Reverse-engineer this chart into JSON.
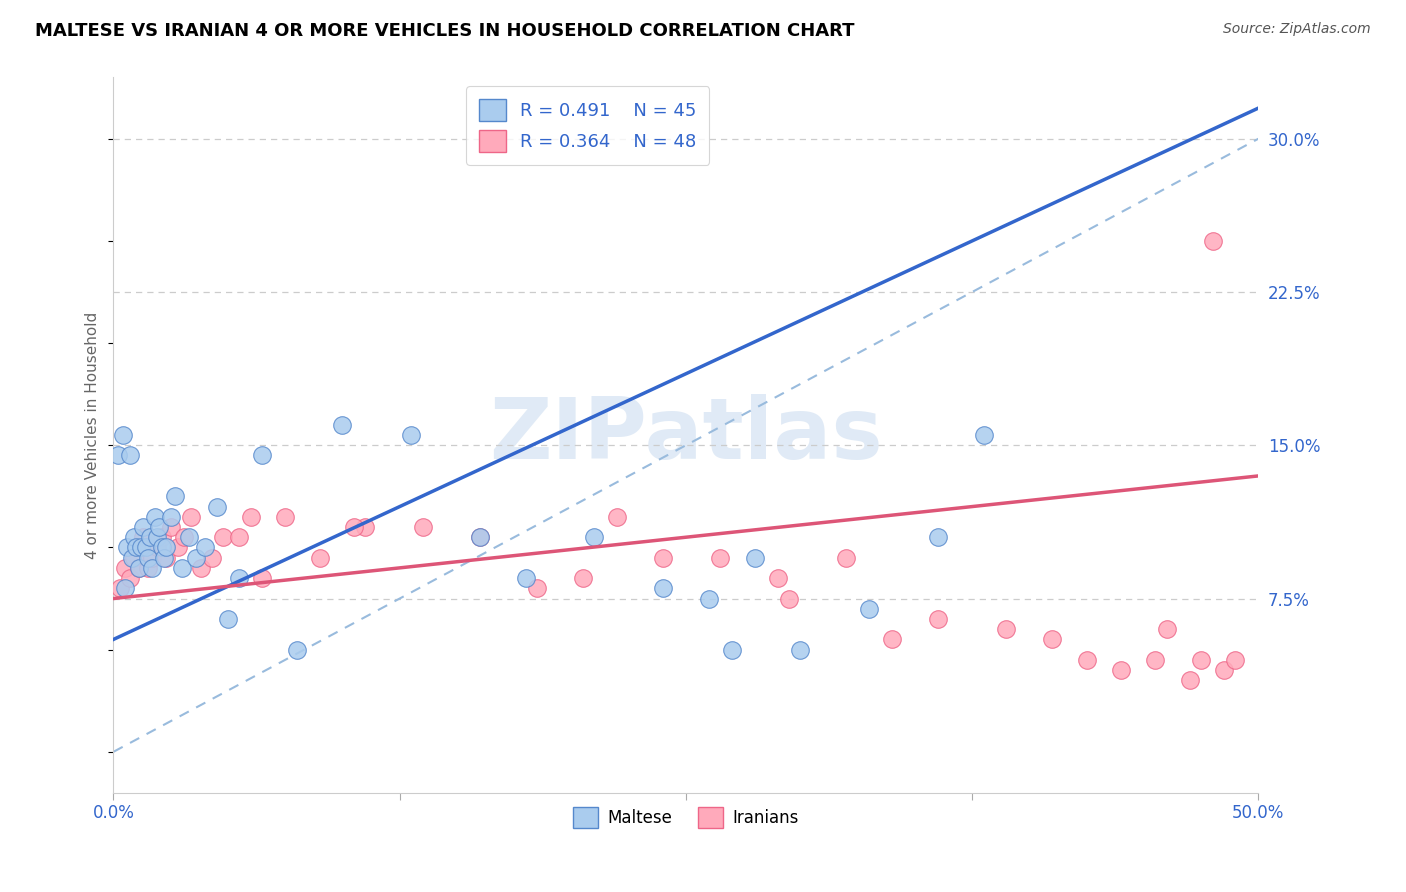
{
  "title": "MALTESE VS IRANIAN 4 OR MORE VEHICLES IN HOUSEHOLD CORRELATION CHART",
  "source": "Source: ZipAtlas.com",
  "ylabel": "4 or more Vehicles in Household",
  "xlim": [
    0.0,
    50.0
  ],
  "ylim": [
    -2.0,
    33.0
  ],
  "xticks": [
    0.0,
    12.5,
    25.0,
    37.5,
    50.0
  ],
  "xtick_labels": [
    "0.0%",
    "",
    "",
    "",
    "50.0%"
  ],
  "ytick_right": [
    7.5,
    15.0,
    22.5,
    30.0
  ],
  "ytick_right_labels": [
    "7.5%",
    "15.0%",
    "22.5%",
    "30.0%"
  ],
  "maltese_fc": "#aaccee",
  "maltese_ec": "#5588cc",
  "iranian_fc": "#ffaabb",
  "iranian_ec": "#ee6688",
  "maltese_line_color": "#3366cc",
  "iranian_line_color": "#dd5577",
  "diag_line_color": "#99bbdd",
  "legend_text_color": "#3366cc",
  "legend_r_maltese": "R = 0.491",
  "legend_n_maltese": "N = 45",
  "legend_r_iranian": "R = 0.364",
  "legend_n_iranian": "N = 48",
  "legend_label_maltese": "Maltese",
  "legend_label_iranian": "Iranians",
  "watermark": "ZIPatlas",
  "maltese_x": [
    0.2,
    0.4,
    0.5,
    0.6,
    0.7,
    0.8,
    0.9,
    1.0,
    1.1,
    1.2,
    1.3,
    1.4,
    1.5,
    1.6,
    1.7,
    1.8,
    1.9,
    2.0,
    2.1,
    2.2,
    2.3,
    2.5,
    2.7,
    3.0,
    3.3,
    3.6,
    4.0,
    4.5,
    5.0,
    5.5,
    6.5,
    8.0,
    10.0,
    13.0,
    16.0,
    18.0,
    21.0,
    24.0,
    26.0,
    27.0,
    28.0,
    30.0,
    33.0,
    36.0,
    38.0
  ],
  "maltese_y": [
    14.5,
    15.5,
    8.0,
    10.0,
    14.5,
    9.5,
    10.5,
    10.0,
    9.0,
    10.0,
    11.0,
    10.0,
    9.5,
    10.5,
    9.0,
    11.5,
    10.5,
    11.0,
    10.0,
    9.5,
    10.0,
    11.5,
    12.5,
    9.0,
    10.5,
    9.5,
    10.0,
    12.0,
    6.5,
    8.5,
    14.5,
    5.0,
    16.0,
    15.5,
    10.5,
    8.5,
    10.5,
    8.0,
    7.5,
    5.0,
    9.5,
    5.0,
    7.0,
    10.5,
    15.5
  ],
  "maltese_reg_x0": 0.0,
  "maltese_reg_y0": 5.5,
  "maltese_reg_x1": 25.0,
  "maltese_reg_y1": 18.5,
  "iranian_x": [
    0.3,
    0.5,
    0.7,
    0.9,
    1.1,
    1.3,
    1.5,
    1.7,
    1.9,
    2.1,
    2.3,
    2.5,
    2.8,
    3.1,
    3.4,
    3.8,
    4.3,
    4.8,
    5.5,
    6.5,
    7.5,
    9.0,
    11.0,
    13.5,
    16.0,
    18.5,
    20.5,
    22.0,
    24.0,
    26.5,
    29.5,
    32.0,
    36.0,
    39.0,
    41.0,
    42.5,
    44.0,
    45.5,
    46.0,
    47.0,
    47.5,
    48.0,
    48.5,
    49.0,
    34.0,
    6.0,
    10.5,
    29.0
  ],
  "iranian_y": [
    8.0,
    9.0,
    8.5,
    9.5,
    9.0,
    10.5,
    9.0,
    9.5,
    10.0,
    10.5,
    9.5,
    11.0,
    10.0,
    10.5,
    11.5,
    9.0,
    9.5,
    10.5,
    10.5,
    8.5,
    11.5,
    9.5,
    11.0,
    11.0,
    10.5,
    8.0,
    8.5,
    11.5,
    9.5,
    9.5,
    7.5,
    9.5,
    6.5,
    6.0,
    5.5,
    4.5,
    4.0,
    4.5,
    6.0,
    3.5,
    4.5,
    25.0,
    4.0,
    4.5,
    5.5,
    11.5,
    11.0,
    8.5
  ],
  "iranian_reg_x0": 0.0,
  "iranian_reg_y0": 7.5,
  "iranian_reg_x1": 50.0,
  "iranian_reg_y1": 13.5
}
